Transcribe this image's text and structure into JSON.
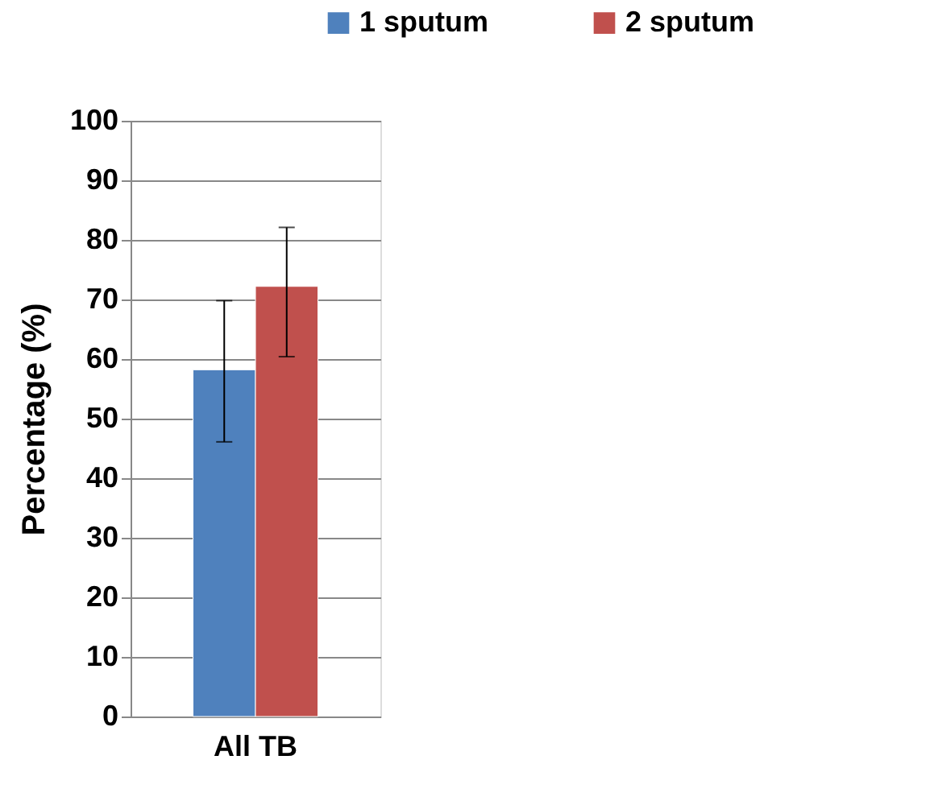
{
  "chart_data": {
    "type": "bar",
    "ylabel": "Percentage (%)",
    "categories": [
      "All TB"
    ],
    "series": [
      {
        "name": "1 sputum",
        "color": "#4f81bd",
        "values": [
          58.2
        ],
        "errors": [
          [
            46.1,
            69.8
          ]
        ]
      },
      {
        "name": "2 sputum",
        "color": "#c0504d",
        "values": [
          72.2
        ],
        "errors": [
          [
            60.4,
            82.1
          ]
        ]
      }
    ],
    "ylim": [
      0,
      100
    ],
    "yticks": [
      0,
      10,
      20,
      30,
      40,
      50,
      60,
      70,
      80,
      90,
      100
    ],
    "grid": "y",
    "legend": "top right"
  }
}
